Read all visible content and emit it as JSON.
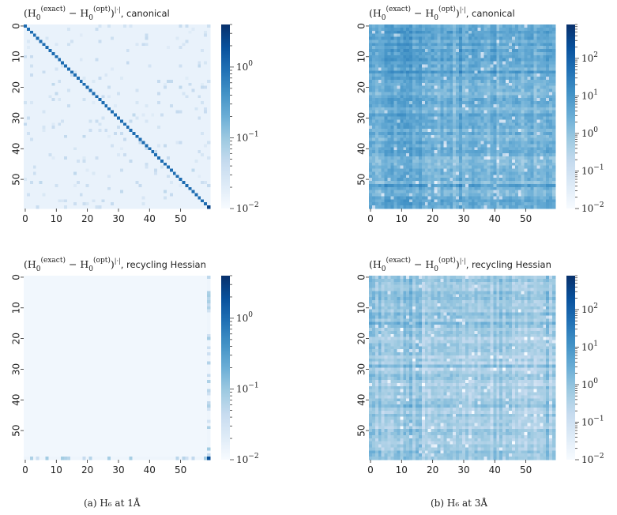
{
  "chart_data": [
    {
      "type": "heatmap",
      "panel": "a",
      "title": "(H_0^(exact) − H_0^(opt))^|·|, canonical",
      "title_suffix": "canonical",
      "size": 60,
      "xticks": [
        0,
        10,
        20,
        30,
        40,
        50
      ],
      "yticks": [
        0,
        10,
        20,
        30,
        40,
        50
      ],
      "color_scale": "log",
      "colorbar_range": [
        0.01,
        4
      ],
      "colorbar_ticks": [
        "10^0",
        "10^-1",
        "10^-2"
      ],
      "pattern": "near-zero off-diagonal with strong main diagonal (~1), sparse weak speckles",
      "diagonal_value": 1.0,
      "background_value": 0.015
    },
    {
      "type": "heatmap",
      "panel": "b",
      "title": "(H_0^(exact) − H_0^(opt))^|·|, canonical",
      "title_suffix": "canonical",
      "size": 60,
      "xticks": [
        0,
        10,
        20,
        30,
        40,
        50
      ],
      "yticks": [
        0,
        10,
        20,
        30,
        40,
        50
      ],
      "color_scale": "log",
      "colorbar_range": [
        0.01,
        800
      ],
      "colorbar_ticks": [
        "10^2",
        "10^1",
        "10^0",
        "10^-1",
        "10^-2"
      ],
      "pattern": "dense structured matrix, values ~1–200, strongest in top-left block",
      "background_value": 5
    },
    {
      "type": "heatmap",
      "panel": "a",
      "title": "(H_0^(exact) − H_0^(opt))^|·|, recycling Hessian",
      "title_suffix": "recycling Hessian",
      "size": 60,
      "xticks": [
        0,
        10,
        20,
        30,
        40,
        50
      ],
      "yticks": [
        0,
        10,
        20,
        30,
        40,
        50
      ],
      "color_scale": "log",
      "colorbar_range": [
        0.01,
        4
      ],
      "colorbar_ticks": [
        "10^0",
        "10^-1",
        "10^-2"
      ],
      "pattern": "almost uniformly ~0.01 except last row/column, bottom-right element ~2",
      "background_value": 0.012,
      "corner_value": 2.0
    },
    {
      "type": "heatmap",
      "panel": "b",
      "title": "(H_0^(exact) − H_0^(opt))^|·|, recycling Hessian",
      "title_suffix": "recycling Hessian",
      "size": 60,
      "xticks": [
        0,
        10,
        20,
        30,
        40,
        50
      ],
      "yticks": [
        0,
        10,
        20,
        30,
        40,
        50
      ],
      "color_scale": "log",
      "colorbar_range": [
        0.01,
        800
      ],
      "colorbar_ticks": [
        "10^2",
        "10^1",
        "10^0",
        "10^-1",
        "10^-2"
      ],
      "pattern": "structured matrix, values ~0.1–100, stronger in top-left block",
      "background_value": 1.5
    }
  ],
  "captions": {
    "a": "(a) H₆ at 1Å",
    "b": "(b) H₆ at 3Å"
  },
  "colors": {
    "cmap_low": "#f7fbff",
    "cmap_mid": "#6baed6",
    "cmap_high": "#08306b"
  }
}
